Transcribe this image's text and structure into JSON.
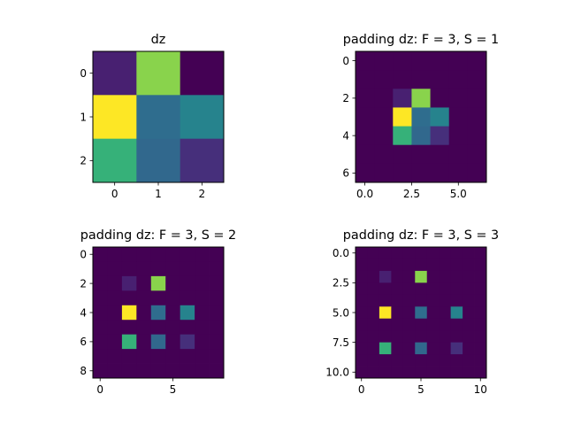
{
  "chart_data": [
    {
      "type": "heatmap",
      "title": "dz",
      "colormap": "viridis",
      "rows": 3,
      "cols": 3,
      "values": [
        [
          1,
          8,
          0
        ],
        [
          9,
          4,
          5
        ],
        [
          7,
          3.8,
          1.5
        ]
      ],
      "xticks": [
        0,
        1,
        2
      ],
      "yticks": [
        0,
        1,
        2
      ],
      "xtick_labels": [
        "0",
        "1",
        "2"
      ],
      "ytick_labels": [
        "0",
        "1",
        "2"
      ]
    },
    {
      "type": "heatmap",
      "title": "padding dz: F = 3, S = 1",
      "colormap": "viridis",
      "rows": 7,
      "cols": 7,
      "source": "dz",
      "F": 3,
      "S": 1,
      "xticks": [
        0,
        2.5,
        5
      ],
      "yticks": [
        0,
        2,
        4,
        6
      ],
      "xtick_labels": [
        "0.0",
        "2.5",
        "5.0"
      ],
      "ytick_labels": [
        "0",
        "2",
        "4",
        "6"
      ]
    },
    {
      "type": "heatmap",
      "title": "padding dz: F = 3, S = 2",
      "colormap": "viridis",
      "rows": 9,
      "cols": 9,
      "source": "dz",
      "F": 3,
      "S": 2,
      "xticks": [
        0,
        5
      ],
      "yticks": [
        0,
        2,
        4,
        6,
        8
      ],
      "xtick_labels": [
        "0",
        "5"
      ],
      "ytick_labels": [
        "0",
        "2",
        "4",
        "6",
        "8"
      ]
    },
    {
      "type": "heatmap",
      "title": "padding dz: F = 3, S = 3",
      "colormap": "viridis",
      "rows": 11,
      "cols": 11,
      "source": "dz",
      "F": 3,
      "S": 3,
      "xticks": [
        0,
        5,
        10
      ],
      "yticks": [
        0,
        2.5,
        5,
        7.5,
        10
      ],
      "xtick_labels": [
        "0",
        "5",
        "10"
      ],
      "ytick_labels": [
        "0.0",
        "2.5",
        "5.0",
        "7.5",
        "10.0"
      ]
    }
  ]
}
